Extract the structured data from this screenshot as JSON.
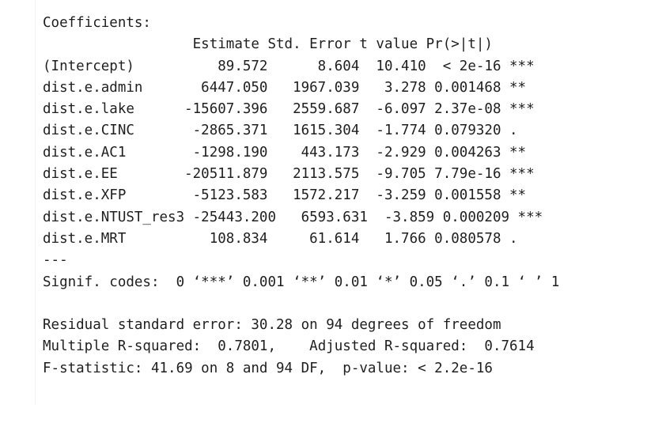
{
  "summary": {
    "header": "Coefficients:",
    "column_header": "                  Estimate Std. Error t value Pr(>|t|)    ",
    "rows": [
      "(Intercept)          89.572      8.604  10.410  < 2e-16 ***",
      "dist.e.admin       6447.050   1967.039   3.278 0.001468 ** ",
      "dist.e.lake      -15607.396   2559.687  -6.097 2.37e-08 ***",
      "dist.e.CINC       -2865.371   1615.304  -1.774 0.079320 .  ",
      "dist.e.AC1        -1298.190    443.173  -2.929 0.004263 ** ",
      "dist.e.EE        -20511.879   2113.575  -9.705 7.79e-16 ***",
      "dist.e.XFP        -5123.583   1572.217  -3.259 0.001558 ** ",
      "dist.e.NTUST_res3 -25443.200   6593.631  -3.859 0.000209 ***",
      "dist.e.MRT          108.834     61.614   1.766 0.080578 .  "
    ],
    "separator": "---",
    "signif_codes": "Signif. codes:  0 ‘***’ 0.001 ‘**’ 0.01 ‘*’ 0.05 ‘.’ 0.1 ‘ ’ 1",
    "blank": " ",
    "residual_se": "Residual standard error: 30.28 on 94 degrees of freedom",
    "r_squared": "Multiple R-squared:  0.7801,\tAdjusted R-squared:  0.7614 ",
    "f_statistic": "F-statistic: 41.69 on 8 and 94 DF,  p-value: < 2.2e-16"
  }
}
